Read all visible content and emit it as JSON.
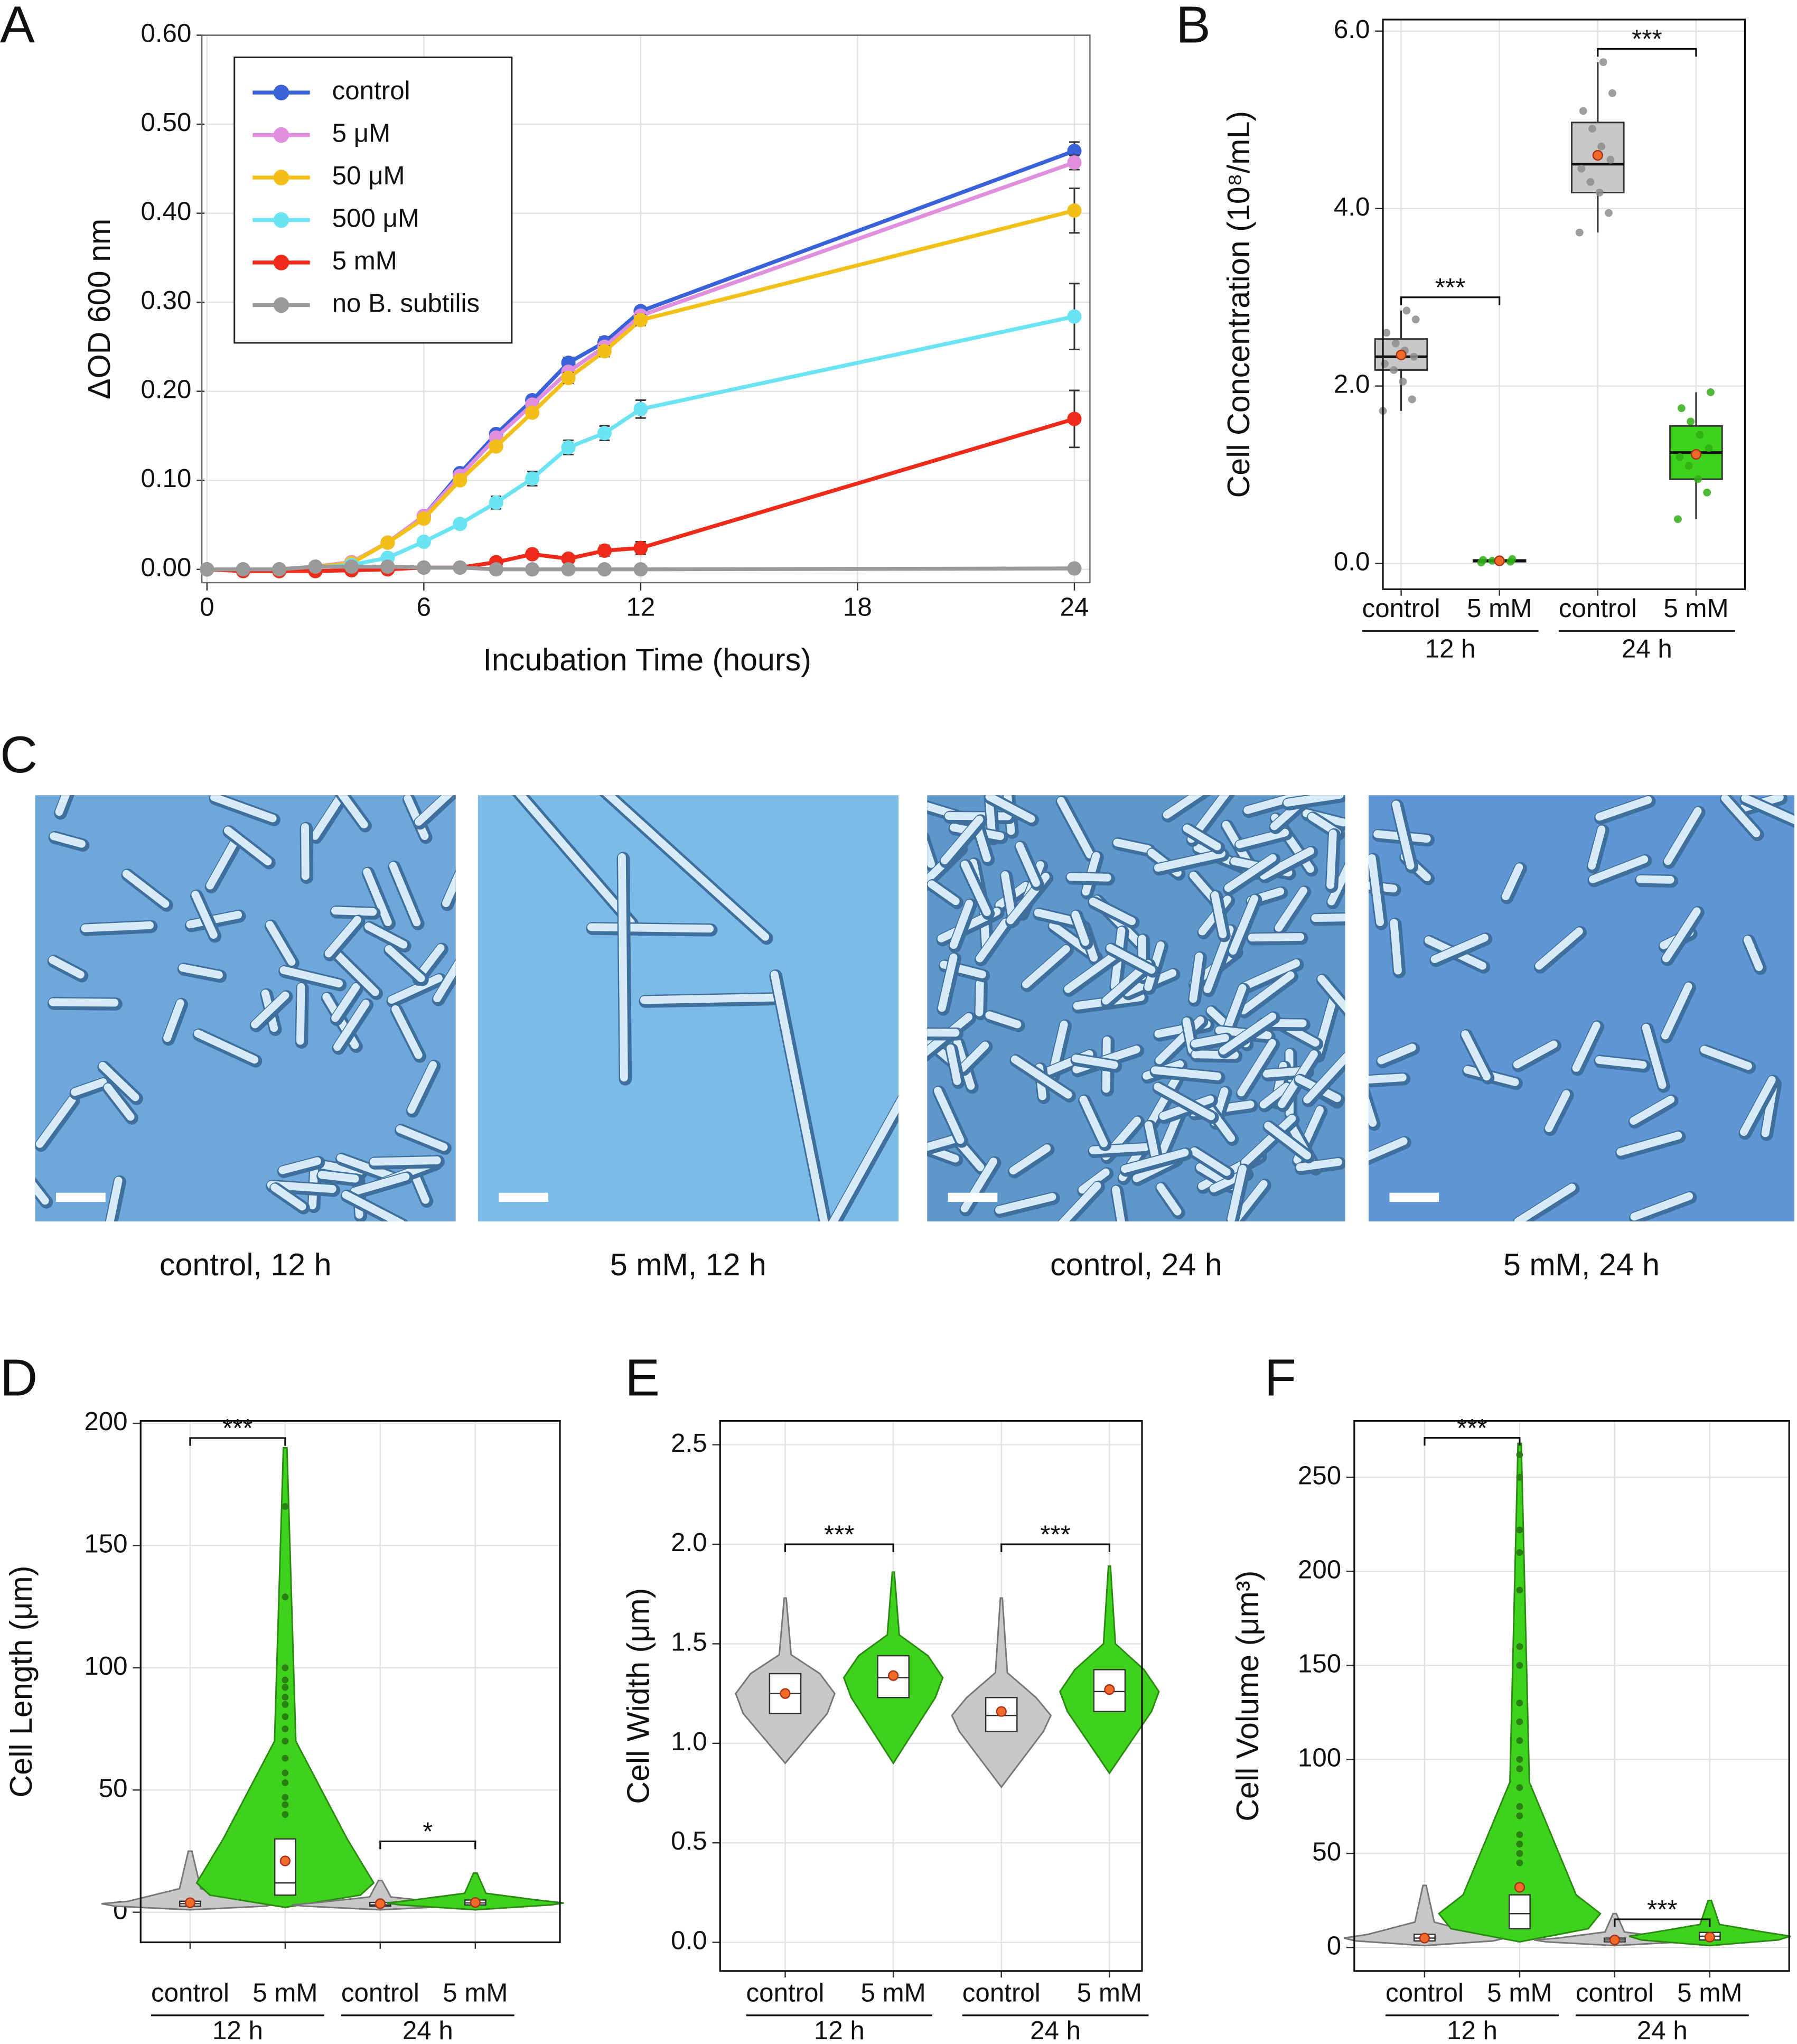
{
  "chart_data": [
    {
      "type": "line",
      "panel": "A",
      "xlabel": "Incubation Time (hours)",
      "ylabel": "ΔOD 600 nm",
      "x": [
        0,
        1,
        2,
        3,
        4,
        5,
        6,
        7,
        8,
        9,
        10,
        11,
        12,
        24
      ],
      "xlim": [
        -0.07,
        24.43
      ],
      "xticks": [
        0,
        6,
        12,
        18,
        24
      ],
      "ylim": [
        -0.015,
        0.6
      ],
      "yticks": [
        {
          "value": 0,
          "label": "0.00"
        },
        {
          "value": 0.1,
          "label": "0.10"
        },
        {
          "value": 0.2,
          "label": "0.20"
        },
        {
          "value": 0.3,
          "label": "0.30"
        },
        {
          "value": 0.4,
          "label": "0.40"
        },
        {
          "value": 0.5,
          "label": "0.50"
        },
        {
          "value": 0.6,
          "label": "0.60"
        }
      ],
      "grid": true,
      "legend": "upper left",
      "series": [
        {
          "name": "control",
          "color": "#3a62d8",
          "values": [
            0,
            0,
            0,
            0.003,
            0.008,
            0.03,
            0.06,
            0.108,
            0.152,
            0.19,
            0.232,
            0.255,
            0.29,
            0.47
          ],
          "errors": [
            0,
            0,
            0,
            0,
            0.001,
            0.002,
            0.003,
            0.004,
            0.004,
            0.005,
            0.006,
            0.006,
            0.005,
            0.01
          ]
        },
        {
          "name": "5 μM",
          "color": "#e08fde",
          "values": [
            0,
            0,
            0,
            0.003,
            0.008,
            0.03,
            0.06,
            0.105,
            0.148,
            0.185,
            0.222,
            0.25,
            0.285,
            0.457
          ],
          "errors": [
            0,
            0,
            0,
            0,
            0.001,
            0.002,
            0.003,
            0.003,
            0.004,
            0.004,
            0.005,
            0.005,
            0.005,
            0.008
          ]
        },
        {
          "name": "50 μM",
          "color": "#f2c018",
          "values": [
            0,
            0,
            0,
            0.003,
            0.007,
            0.03,
            0.057,
            0.1,
            0.138,
            0.176,
            0.215,
            0.245,
            0.28,
            0.403
          ],
          "errors": [
            0,
            0,
            0,
            0,
            0.001,
            0.002,
            0.003,
            0.004,
            0.004,
            0.005,
            0.006,
            0.006,
            0.006,
            0.025
          ]
        },
        {
          "name": "500 μM",
          "color": "#6ae3f2",
          "values": [
            0,
            0,
            0,
            0.002,
            0.005,
            0.013,
            0.031,
            0.051,
            0.075,
            0.102,
            0.137,
            0.153,
            0.18,
            0.284
          ],
          "errors": [
            0,
            0,
            0,
            0,
            0.001,
            0.002,
            0.003,
            0.004,
            0.007,
            0.008,
            0.008,
            0.008,
            0.01,
            0.037
          ]
        },
        {
          "name": "5 mM",
          "color": "#ee2a1a",
          "values": [
            0,
            -0.002,
            -0.002,
            -0.002,
            -0.001,
            0,
            0.002,
            0.002,
            0.008,
            0.017,
            0.012,
            0.021,
            0.024,
            0.169
          ],
          "errors": [
            0,
            0,
            0,
            0,
            0,
            0,
            0.002,
            0.002,
            0.003,
            0.003,
            0.004,
            0.006,
            0.007,
            0.032
          ]
        },
        {
          "name": "no B. subtilis",
          "color": "#9a9a9a",
          "values": [
            0,
            0,
            0,
            0.003,
            0.003,
            0.003,
            0.002,
            0.002,
            0,
            0,
            0,
            0,
            0,
            0.001
          ],
          "errors": [
            0,
            0,
            0,
            0,
            0,
            0,
            0,
            0,
            0,
            0,
            0,
            0,
            0,
            0.001
          ]
        }
      ]
    },
    {
      "type": "box",
      "panel": "B",
      "ylabel": "Cell Concentration (10⁸/mL)",
      "categories": [
        "control",
        "5 mM",
        "control",
        "5 mM"
      ],
      "group_labels": [
        "12 h",
        "24 h"
      ],
      "colors": [
        "#c8c8c8",
        "#3ed21c",
        "#c8c8c8",
        "#3ed21c"
      ],
      "ylim": [
        -0.29,
        6.13
      ],
      "yticks": [
        {
          "value": 0,
          "label": "0.0"
        },
        {
          "value": 2,
          "label": "2.0"
        },
        {
          "value": 4,
          "label": "4.0"
        },
        {
          "value": 6,
          "label": "6.0"
        }
      ],
      "grid": true,
      "stats": [
        {
          "min": 1.72,
          "q1": 2.18,
          "median": 2.33,
          "q3": 2.53,
          "max": 2.85,
          "mean": 2.35,
          "points": [
            1.72,
            1.85,
            2.05,
            2.18,
            2.25,
            2.33,
            2.4,
            2.48,
            2.6,
            2.75,
            2.85
          ]
        },
        {
          "min": 0.01,
          "q1": 0.02,
          "median": 0.03,
          "q3": 0.04,
          "max": 0.05,
          "mean": 0.03,
          "points": [
            0.01,
            0.02,
            0.03,
            0.03,
            0.04,
            0.05
          ]
        },
        {
          "min": 3.73,
          "q1": 4.18,
          "median": 4.5,
          "q3": 4.97,
          "max": 5.65,
          "mean": 4.6,
          "points": [
            3.73,
            3.95,
            4.18,
            4.3,
            4.45,
            4.55,
            4.7,
            4.9,
            5.1,
            5.3,
            5.65
          ]
        },
        {
          "min": 0.5,
          "q1": 0.95,
          "median": 1.25,
          "q3": 1.55,
          "max": 1.93,
          "mean": 1.23,
          "points": [
            0.5,
            0.8,
            0.95,
            1.1,
            1.2,
            1.3,
            1.45,
            1.6,
            1.75,
            1.93
          ]
        }
      ],
      "significance": [
        {
          "pair": [
            0,
            1
          ],
          "y": 3.0,
          "label": "***"
        },
        {
          "pair": [
            2,
            3
          ],
          "y": 5.8,
          "label": "***"
        }
      ]
    },
    {
      "type": "violin",
      "panel": "D",
      "ylabel": "Cell Length (μm)",
      "categories": [
        "control",
        "5 mM",
        "control",
        "5 mM"
      ],
      "group_labels": [
        "12 h",
        "24 h"
      ],
      "colors": [
        "#c8c8c8",
        "#3ed21c",
        "#c8c8c8",
        "#3ed21c"
      ],
      "ylim": [
        -12.3,
        201
      ],
      "yticks": [
        0,
        50,
        100,
        150,
        200
      ],
      "grid": true,
      "stats": [
        {
          "min": 1,
          "q1": 2.5,
          "median": 3.5,
          "q3": 4.5,
          "max": 25,
          "mean": 3.9,
          "outliers": []
        },
        {
          "min": 2,
          "q1": 7,
          "median": 12,
          "q3": 30,
          "max": 190,
          "mean": 21,
          "outliers": [
            166,
            129,
            100,
            95,
            92,
            88,
            85,
            80,
            75,
            70,
            63,
            57,
            53,
            47,
            44,
            40
          ]
        },
        {
          "min": 1,
          "q1": 2.5,
          "median": 3,
          "q3": 4,
          "max": 13,
          "mean": 3.5,
          "outliers": []
        },
        {
          "min": 1,
          "q1": 3,
          "median": 3.8,
          "q3": 5,
          "max": 16,
          "mean": 4,
          "outliers": []
        }
      ],
      "significance": [
        {
          "pair": [
            0,
            1
          ],
          "y": 194,
          "label": "***"
        },
        {
          "pair": [
            2,
            3
          ],
          "y": 29,
          "label": "*"
        }
      ]
    },
    {
      "type": "violin",
      "panel": "E",
      "ylabel": "Cell Width (μm)",
      "categories": [
        "control",
        "5 mM",
        "control",
        "5 mM"
      ],
      "group_labels": [
        "12 h",
        "24 h"
      ],
      "colors": [
        "#c8c8c8",
        "#3ed21c",
        "#c8c8c8",
        "#3ed21c"
      ],
      "ylim": [
        -0.144,
        2.62
      ],
      "yticks": [
        {
          "value": 0,
          "label": "0.0"
        },
        {
          "value": 0.5,
          "label": "0.5"
        },
        {
          "value": 1,
          "label": "1.0"
        },
        {
          "value": 1.5,
          "label": "1.5"
        },
        {
          "value": 2,
          "label": "2.0"
        },
        {
          "value": 2.5,
          "label": "2.5"
        }
      ],
      "grid": true,
      "stats": [
        {
          "min": 0.9,
          "q1": 1.15,
          "median": 1.25,
          "q3": 1.35,
          "max": 1.73,
          "mean": 1.25,
          "outliers": []
        },
        {
          "min": 0.9,
          "q1": 1.23,
          "median": 1.33,
          "q3": 1.44,
          "max": 1.86,
          "mean": 1.34,
          "outliers": []
        },
        {
          "min": 0.78,
          "q1": 1.06,
          "median": 1.14,
          "q3": 1.23,
          "max": 1.73,
          "mean": 1.16,
          "outliers": []
        },
        {
          "min": 0.85,
          "q1": 1.16,
          "median": 1.26,
          "q3": 1.37,
          "max": 1.89,
          "mean": 1.27,
          "outliers": []
        }
      ],
      "significance": [
        {
          "pair": [
            0,
            1
          ],
          "y": 2.0,
          "label": "***"
        },
        {
          "pair": [
            2,
            3
          ],
          "y": 2.0,
          "label": "***"
        }
      ]
    },
    {
      "type": "violin",
      "panel": "F",
      "ylabel": "Cell Volume (μm³)",
      "categories": [
        "control",
        "5 mM",
        "control",
        "5 mM"
      ],
      "group_labels": [
        "12 h",
        "24 h"
      ],
      "colors": [
        "#c8c8c8",
        "#3ed21c",
        "#c8c8c8",
        "#3ed21c"
      ],
      "ylim": [
        -12.5,
        280
      ],
      "yticks": [
        0,
        50,
        100,
        150,
        200,
        250
      ],
      "grid": true,
      "stats": [
        {
          "min": 1,
          "q1": 3.5,
          "median": 5,
          "q3": 7,
          "max": 33,
          "mean": 5,
          "outliers": []
        },
        {
          "min": 3,
          "q1": 10,
          "median": 18,
          "q3": 28,
          "max": 268,
          "mean": 32,
          "outliers": [
            262,
            250,
            222,
            210,
            190,
            160,
            150,
            130,
            120,
            110,
            100,
            95,
            85,
            75,
            70,
            60,
            55,
            50,
            45
          ]
        },
        {
          "min": 1,
          "q1": 3,
          "median": 4,
          "q3": 5,
          "max": 18,
          "mean": 4,
          "outliers": []
        },
        {
          "min": 1,
          "q1": 4,
          "median": 6,
          "q3": 8,
          "max": 25,
          "mean": 5.5,
          "outliers": []
        }
      ],
      "significance": [
        {
          "pair": [
            0,
            1
          ],
          "y": 271,
          "label": "***"
        },
        {
          "pair": [
            2,
            3
          ],
          "y": 15,
          "label": "***"
        }
      ]
    }
  ],
  "micrographs": {
    "panel": "C",
    "images": [
      {
        "caption": "control, 12 h"
      },
      {
        "caption": "5 mM, 12 h"
      },
      {
        "caption": "control, 24 h"
      },
      {
        "caption": "5 mM, 24 h"
      }
    ]
  }
}
